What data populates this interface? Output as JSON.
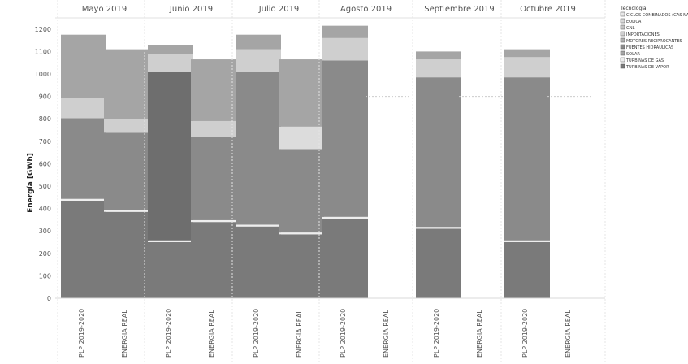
{
  "chart_data": {
    "type": "bar",
    "stacked": true,
    "ylabel": "Energía [GWh]",
    "ylim": [
      0,
      1250
    ],
    "yticks": [
      0,
      100,
      200,
      300,
      400,
      500,
      600,
      700,
      800,
      900,
      1000,
      1100,
      1200
    ],
    "grid": false,
    "legend_position": "top-right",
    "legend_title": "Tecnología",
    "legend": [
      {
        "name": "CICLOS COMBINADOS (GAS NATURAL)",
        "color": "#e8e8e8"
      },
      {
        "name": "EOLICA",
        "color": "#d8d8d8"
      },
      {
        "name": "GNL",
        "color": "#c4c4c4"
      },
      {
        "name": "IMPORTACIONES",
        "color": "#cfcfcf"
      },
      {
        "name": "MOTORES RECIPROCANTES",
        "color": "#b0b0b0"
      },
      {
        "name": "FUENTES HIDRÁULICAS",
        "color": "#8a8a8a"
      },
      {
        "name": "SOLAR",
        "color": "#a5a5a5"
      },
      {
        "name": "TURBINAS DE GAS",
        "color": "#eeeeee"
      },
      {
        "name": "TURBINAS DE VAPOR",
        "color": "#7a7a7a"
      }
    ],
    "groups": [
      {
        "month": "Mayo 2019",
        "bars": [
          {
            "category": "PLP 2019-2020",
            "total": 1175,
            "segments": [
              {
                "layer": "base",
                "value": 435,
                "color": "#7a7a7a"
              },
              {
                "layer": "line",
                "value": 8,
                "color": "#eeeeee"
              },
              {
                "layer": "hydro",
                "value": 360,
                "color": "#8a8a8a"
              },
              {
                "layer": "gas",
                "value": 90,
                "color": "#cfcfcf"
              },
              {
                "layer": "upper",
                "value": 282,
                "color": "#a5a5a5"
              }
            ]
          },
          {
            "category": "ENERGIA REAL",
            "total": 1110,
            "segments": [
              {
                "layer": "base",
                "value": 385,
                "color": "#7a7a7a"
              },
              {
                "layer": "line",
                "value": 8,
                "color": "#eeeeee"
              },
              {
                "layer": "hydro",
                "value": 345,
                "color": "#8a8a8a"
              },
              {
                "layer": "gas",
                "value": 60,
                "color": "#cfcfcf"
              },
              {
                "layer": "upper",
                "value": 312,
                "color": "#a5a5a5"
              }
            ]
          }
        ]
      },
      {
        "month": "Junio 2019",
        "bars": [
          {
            "category": "PLP 2019-2020",
            "total": 1130,
            "segments": [
              {
                "layer": "base",
                "value": 250,
                "color": "#7a7a7a"
              },
              {
                "layer": "line",
                "value": 8,
                "color": "#eeeeee"
              },
              {
                "layer": "hydro",
                "value": 752,
                "color": "#6e6e6e"
              },
              {
                "layer": "gas",
                "value": 80,
                "color": "#cfcfcf"
              },
              {
                "layer": "upper",
                "value": 40,
                "color": "#a5a5a5"
              }
            ]
          },
          {
            "category": "ENERGIA REAL",
            "total": 1065,
            "segments": [
              {
                "layer": "base",
                "value": 340,
                "color": "#7a7a7a"
              },
              {
                "layer": "line",
                "value": 8,
                "color": "#eeeeee"
              },
              {
                "layer": "hydro",
                "value": 372,
                "color": "#8a8a8a"
              },
              {
                "layer": "gas",
                "value": 70,
                "color": "#cfcfcf"
              },
              {
                "layer": "upper",
                "value": 275,
                "color": "#a5a5a5"
              }
            ]
          }
        ]
      },
      {
        "month": "Julio 2019",
        "bars": [
          {
            "category": "PLP 2019-2020",
            "total": 1175,
            "segments": [
              {
                "layer": "base",
                "value": 320,
                "color": "#7a7a7a"
              },
              {
                "layer": "line",
                "value": 8,
                "color": "#eeeeee"
              },
              {
                "layer": "hydro",
                "value": 682,
                "color": "#8a8a8a"
              },
              {
                "layer": "gas",
                "value": 100,
                "color": "#cfcfcf"
              },
              {
                "layer": "upper",
                "value": 65,
                "color": "#a5a5a5"
              }
            ]
          },
          {
            "category": "ENERGIA REAL",
            "total": 1065,
            "segments": [
              {
                "layer": "base",
                "value": 285,
                "color": "#7a7a7a"
              },
              {
                "layer": "line",
                "value": 8,
                "color": "#eeeeee"
              },
              {
                "layer": "hydro",
                "value": 372,
                "color": "#8a8a8a"
              },
              {
                "layer": "gas",
                "value": 100,
                "color": "#dcdcdc"
              },
              {
                "layer": "upper",
                "value": 300,
                "color": "#a5a5a5"
              }
            ]
          }
        ]
      },
      {
        "month": "Agosto 2019",
        "bars": [
          {
            "category": "PLP 2019-2020",
            "total": 1215,
            "segments": [
              {
                "layer": "base",
                "value": 355,
                "color": "#7a7a7a"
              },
              {
                "layer": "line",
                "value": 8,
                "color": "#eeeeee"
              },
              {
                "layer": "hydro",
                "value": 697,
                "color": "#8a8a8a"
              },
              {
                "layer": "gas",
                "value": 100,
                "color": "#cfcfcf"
              },
              {
                "layer": "upper",
                "value": 55,
                "color": "#a5a5a5"
              }
            ]
          },
          {
            "category": "ENERGIA REAL",
            "total": 0,
            "segments": []
          }
        ]
      },
      {
        "month": "Septiembre 2019",
        "bars": [
          {
            "category": "PLP 2019-2020",
            "total": 1100,
            "segments": [
              {
                "layer": "base",
                "value": 310,
                "color": "#7a7a7a"
              },
              {
                "layer": "line",
                "value": 8,
                "color": "#eeeeee"
              },
              {
                "layer": "hydro",
                "value": 667,
                "color": "#8a8a8a"
              },
              {
                "layer": "gas",
                "value": 80,
                "color": "#cfcfcf"
              },
              {
                "layer": "upper",
                "value": 35,
                "color": "#a5a5a5"
              }
            ]
          },
          {
            "category": "ENERGIA REAL",
            "total": 0,
            "segments": []
          }
        ]
      },
      {
        "month": "Octubre 2019",
        "bars": [
          {
            "category": "PLP 2019-2020",
            "total": 1110,
            "segments": [
              {
                "layer": "base",
                "value": 250,
                "color": "#7a7a7a"
              },
              {
                "layer": "line",
                "value": 8,
                "color": "#eeeeee"
              },
              {
                "layer": "hydro",
                "value": 727,
                "color": "#8a8a8a"
              },
              {
                "layer": "gas",
                "value": 90,
                "color": "#cfcfcf"
              },
              {
                "layer": "upper",
                "value": 35,
                "color": "#a5a5a5"
              }
            ]
          },
          {
            "category": "ENERGIA REAL",
            "total": 0,
            "segments": []
          }
        ]
      }
    ]
  }
}
